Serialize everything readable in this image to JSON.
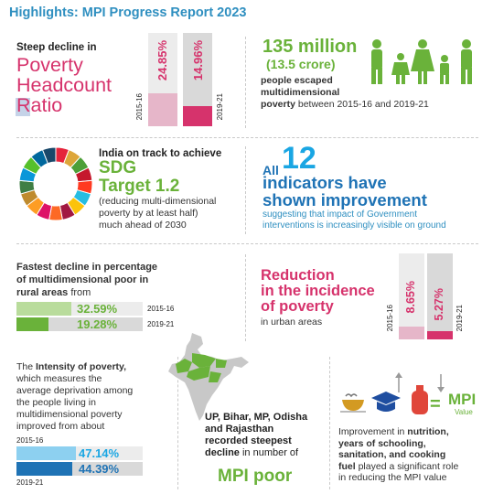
{
  "title": "Highlights: MPI Progress Report 2023",
  "colors": {
    "pink": "#d6336c",
    "pink_light": "#e6b6c9",
    "green": "#6ab23a",
    "green_light": "#b9dc9c",
    "blue": "#1aa6e3",
    "blue_dark": "#1f73b5",
    "gray": "#d9d9d9"
  },
  "p1": {
    "lead": "Steep decline in",
    "big1": "Poverty",
    "big2": "Headcount",
    "big3": "Ratio",
    "bar1_value": "24.85%",
    "bar2_value": "14.96%",
    "bar1_year": "2015-16",
    "bar2_year": "2019-21",
    "bar1_share": 0.2485,
    "bar2_share": 0.1496
  },
  "p2": {
    "big": "135 million",
    "sub": "(13.5 crore)",
    "line1": "people escaped",
    "line2": "multidimensional",
    "line3_bold": "poverty",
    "line3_rest": " between 2015-16 and 2019-21",
    "icon": "family-icon"
  },
  "p3": {
    "lead": "India on track to achieve",
    "big1": "SDG",
    "big2": "Target 1.2",
    "line1": "(reducing multi-dimensional",
    "line2": "poverty by at least half)",
    "line3": "much ahead of 2030",
    "icon": "sdg-wheel-icon"
  },
  "p4": {
    "all": "All",
    "num": "12",
    "big1": "indicators have",
    "big2": "shown improvement",
    "line1": "suggesting that impact of Government",
    "line2": "interventions is increasingly visible on ground"
  },
  "p5": {
    "line1": "Fastest decline in percentage",
    "line2": "of multidimensional poor in",
    "line3_bold": "rural areas",
    "line3_rest": " from",
    "bar1_value": "32.59%",
    "bar2_value": "19.28%",
    "bar1_year": "2015-16",
    "bar2_year": "2019-21",
    "bar1_share": 0.3259,
    "bar2_share": 0.1928
  },
  "p6": {
    "big1": "Reduction",
    "big2": "in the incidence",
    "big3": "of poverty",
    "sub": "in urban areas",
    "bar1_value": "8.65%",
    "bar2_value": "5.27%",
    "bar1_year": "2015-16",
    "bar2_year": "2019-21",
    "bar1_share": 0.0865,
    "bar2_share": 0.0527
  },
  "p7": {
    "line1_pre": "The ",
    "line1_bold": "Intensity of poverty,",
    "line2": "which measures the",
    "line3": "average deprivation among",
    "line4": "the people living in",
    "line5": "multidimensional poverty",
    "line6": "improved from about",
    "bar1_value": "47.14%",
    "bar2_value": "44.39%",
    "bar1_year": "2015-16",
    "bar2_year": "2019-21",
    "bar1_share": 0.4714,
    "bar2_share": 0.4439
  },
  "p8": {
    "line1": "UP, Bihar, MP, Odisha",
    "line2": "and Rajasthan",
    "line3": "recorded steepest",
    "line4_bold": "decline",
    "line4_rest": " in number of",
    "big": "MPI poor",
    "icon": "india-map-icon"
  },
  "p9": {
    "eq": "=",
    "mpi": "MPI",
    "value": "Value",
    "line1_pre": "Improvement in ",
    "line1_bold": "nutrition,",
    "line2": "years of schooling,",
    "line3": "sanitation, and cooking",
    "line4_bold": "fuel",
    "line4_rest": " played a significant role",
    "line5": "in reducing the MPI value",
    "icons": [
      "food-bowl-icon",
      "graduation-cap-icon",
      "gas-cylinder-icon"
    ]
  }
}
